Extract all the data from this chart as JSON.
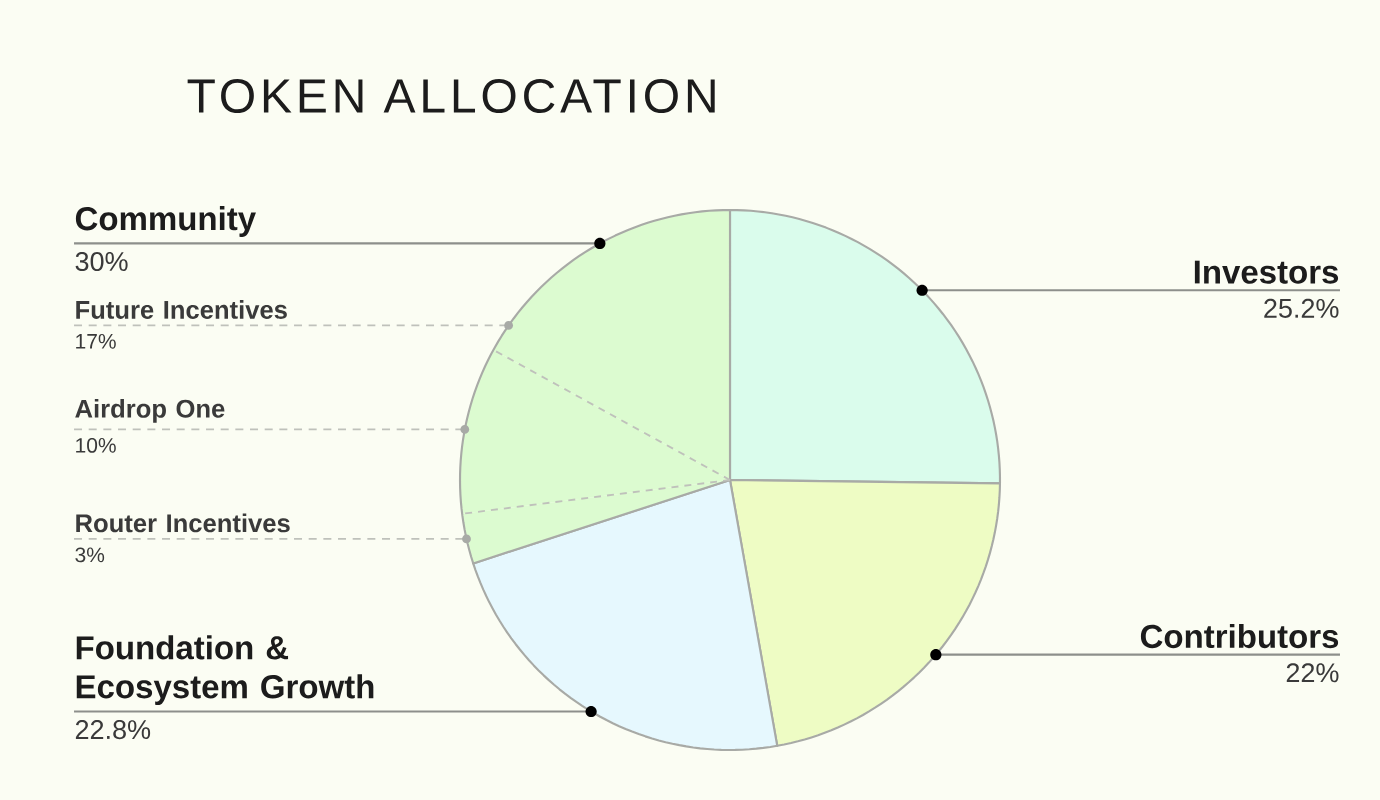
{
  "chart_data": {
    "type": "pie",
    "title": "TOKEN ALLOCATION",
    "categories": [
      "Investors",
      "Contributors",
      "Foundation & Ecosystem Growth",
      "Router Incentives",
      "Airdrop One",
      "Future Incentives"
    ],
    "values": [
      25.2,
      22,
      22.8,
      3,
      10,
      17
    ],
    "colors": [
      "#dafcec",
      "#eefcc4",
      "#e6f8fe",
      "#dcfbd0",
      "#dcfbd0",
      "#dcfbd0"
    ],
    "value_labels": [
      "25.2%",
      "22%",
      "22.8%",
      "3%",
      "10%",
      "17%"
    ],
    "annotations": [
      "Community",
      "30%"
    ]
  }
}
